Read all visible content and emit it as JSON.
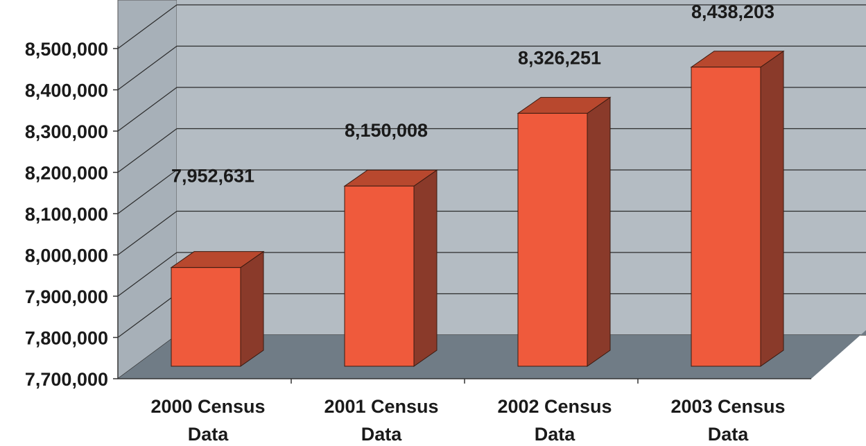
{
  "chart_data": {
    "type": "bar",
    "style": "3d-column",
    "categories": [
      [
        "2000 Census",
        "Data"
      ],
      [
        "2001 Census",
        "Data"
      ],
      [
        "2002 Census",
        "Data"
      ],
      [
        "2003 Census",
        "Data"
      ]
    ],
    "series": [
      {
        "values": [
          7952631,
          8150008,
          8326251,
          8438203
        ]
      }
    ],
    "data_labels": [
      "7,952,631",
      "8,150,008",
      "8,326,251",
      "8,438,203"
    ],
    "yticks": [
      "7,700,000",
      "7,800,000",
      "7,900,000",
      "8,000,000",
      "8,100,000",
      "8,200,000",
      "8,300,000",
      "8,400,000",
      "8,500,000"
    ],
    "ylim": [
      7700000,
      8500000
    ],
    "title": "",
    "xlabel": "",
    "ylabel": "",
    "grid": true,
    "legend": "none",
    "colors": {
      "bar_front": "#ef5a3c",
      "bar_top": "#b8482e",
      "bar_side": "#8a3a2a",
      "wall": "#b4bcc3",
      "side_wall": "#a7b0b8",
      "floor": "#707c86",
      "gridline": "#2b2b2b"
    }
  }
}
